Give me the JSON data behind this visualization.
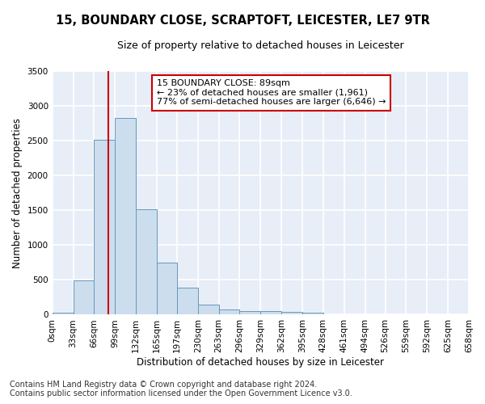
{
  "title_line1": "15, BOUNDARY CLOSE, SCRAPTOFT, LEICESTER, LE7 9TR",
  "title_line2": "Size of property relative to detached houses in Leicester",
  "xlabel": "Distribution of detached houses by size in Leicester",
  "ylabel": "Number of detached properties",
  "bar_color": "#ccdded",
  "bar_edge_color": "#6699bb",
  "vline_color": "#cc0000",
  "vline_x": 89,
  "annotation_text": "15 BOUNDARY CLOSE: 89sqm\n← 23% of detached houses are smaller (1,961)\n77% of semi-detached houses are larger (6,646) →",
  "bin_edges": [
    0,
    33,
    66,
    99,
    132,
    165,
    197,
    230,
    263,
    296,
    329,
    362,
    395,
    428,
    461,
    494,
    526,
    559,
    592,
    625,
    658
  ],
  "bar_heights": [
    30,
    490,
    2510,
    2820,
    1510,
    750,
    390,
    145,
    80,
    50,
    50,
    45,
    30,
    0,
    0,
    0,
    0,
    0,
    0,
    0
  ],
  "xlim": [
    0,
    658
  ],
  "ylim": [
    0,
    3500
  ],
  "yticks": [
    0,
    500,
    1000,
    1500,
    2000,
    2500,
    3000,
    3500
  ],
  "xtick_labels": [
    "0sqm",
    "33sqm",
    "66sqm",
    "99sqm",
    "132sqm",
    "165sqm",
    "197sqm",
    "230sqm",
    "263sqm",
    "296sqm",
    "329sqm",
    "362sqm",
    "395sqm",
    "428sqm",
    "461sqm",
    "494sqm",
    "526sqm",
    "559sqm",
    "592sqm",
    "625sqm",
    "658sqm"
  ],
  "background_color": "#e8eef8",
  "fig_background": "#ffffff",
  "grid_color": "#ffffff",
  "footer_line1": "Contains HM Land Registry data © Crown copyright and database right 2024.",
  "footer_line2": "Contains public sector information licensed under the Open Government Licence v3.0.",
  "title_fontsize": 10.5,
  "subtitle_fontsize": 9,
  "annotation_fontsize": 8,
  "footer_fontsize": 7,
  "ylabel_fontsize": 8.5,
  "xlabel_fontsize": 8.5,
  "tick_fontsize": 7.5
}
